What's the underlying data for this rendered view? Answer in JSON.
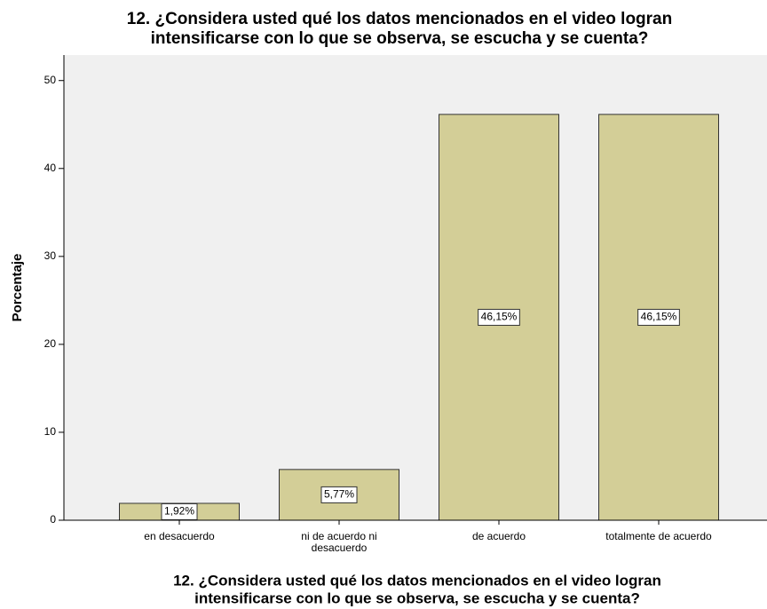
{
  "chart_data": {
    "type": "bar",
    "title": [
      "12. ¿Considera usted qué los datos mencionados en el video logran",
      "intensificarse con lo que se observa, se escucha y se cuenta?"
    ],
    "x_label": [
      "12. ¿Considera usted qué los datos mencionados en el video logran",
      "intensificarse con lo que se observa, se escucha y se cuenta?"
    ],
    "y_label": "Porcentaje",
    "categories": [
      "en desacuerdo",
      "ni de acuerdo ni desacuerdo",
      "de acuerdo",
      "totalmente de acuerdo"
    ],
    "values": [
      1.92,
      5.77,
      46.15,
      46.15
    ],
    "value_labels": [
      "1,92%",
      "5,77%",
      "46,15%",
      "46,15%"
    ],
    "color": "#d3ce97",
    "ylim": [
      0,
      52.9
    ],
    "yticks": [
      0,
      10,
      20,
      30,
      40,
      50
    ],
    "grid": false
  }
}
